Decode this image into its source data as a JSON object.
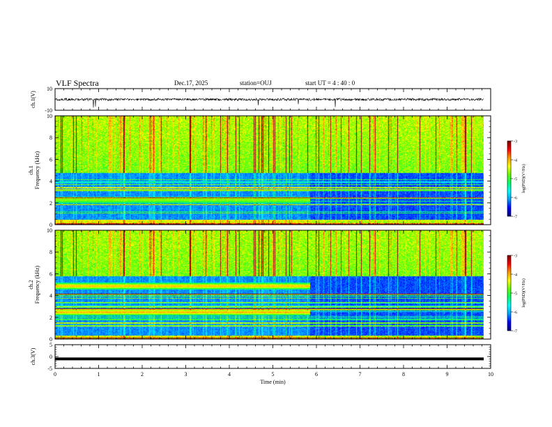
{
  "header": {
    "title": "VLF Spectra",
    "date": "Dec.17, 2025",
    "station": "station=OUJ",
    "start_ut": "start  UT =   4 : 40 : 0"
  },
  "chart_data": [
    {
      "type": "line",
      "panel": "ch1_waveform",
      "ylabel": "ch.1(V)",
      "ylim": [
        -10,
        10
      ],
      "ytick_labels": [
        "10",
        "-10"
      ],
      "baseline": 0,
      "note": "noisy waveform centered near 0 V with sparse negative spikes"
    },
    {
      "type": "heatmap",
      "panel": "ch1_spectrogram",
      "ylabel": "ch.1\nFrequency (kHz)",
      "ylim": [
        0,
        10
      ],
      "ytick_labels": [
        "0",
        "2",
        "4",
        "6",
        "8",
        "10"
      ],
      "xlim": [
        0,
        10
      ],
      "colorbar": {
        "label": "log(PSD)(V²/Hz)",
        "range": [
          -7,
          -3
        ],
        "tick_labels": [
          "-3",
          "-4",
          "-5",
          "-6",
          "-7"
        ]
      },
      "features": {
        "change_time_min": 5.85,
        "band_before_khz": [
          2.0,
          2.6
        ],
        "upper_edge_khz": 4.8
      }
    },
    {
      "type": "heatmap",
      "panel": "ch2_spectrogram",
      "ylabel": "ch.2\nFrequency (kHz)",
      "ylim": [
        0,
        10
      ],
      "ytick_labels": [
        "0",
        "2",
        "4",
        "6",
        "8",
        "10"
      ],
      "xlim": [
        0,
        10
      ],
      "colorbar": {
        "label": "log(PSD)(V²/Hz)",
        "range": [
          -7,
          -3
        ],
        "tick_labels": [
          "-3",
          "-4",
          "-5",
          "-6",
          "-7"
        ]
      },
      "features": {
        "change_time_min": 5.85,
        "bands_before_khz": [
          [
            4.6,
            5.2
          ],
          [
            2.2,
            2.8
          ]
        ],
        "upper_edge_khz": 5.8
      }
    },
    {
      "type": "line",
      "panel": "ch3_waveform",
      "ylabel": "ch.3(V)",
      "ylim": [
        -5,
        5
      ],
      "ytick_labels": [
        "5",
        "0",
        "-5"
      ],
      "value": -1,
      "note": "flat thick line"
    }
  ],
  "x_axis": {
    "label": "Time (min)",
    "range": [
      0,
      10
    ],
    "tick_labels": [
      "0",
      "1",
      "2",
      "3",
      "4",
      "5",
      "6",
      "7",
      "8",
      "9",
      "10"
    ]
  },
  "colors": {
    "axis": "#000000",
    "colormap": [
      "#00007f",
      "#0000ff",
      "#00a0ff",
      "#00ffff",
      "#00ff66",
      "#66ff00",
      "#ffff00",
      "#ff9900",
      "#ff0000",
      "#800000"
    ]
  }
}
